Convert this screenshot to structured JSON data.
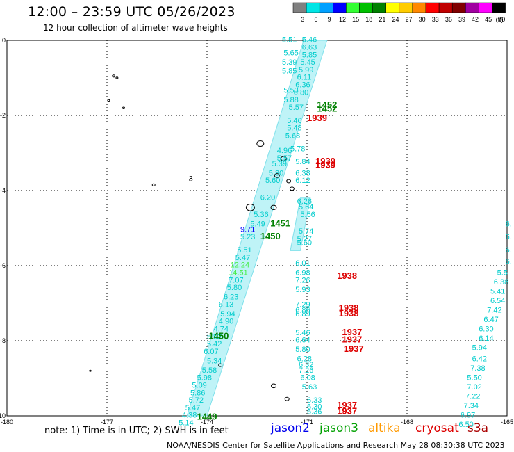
{
  "header": {
    "title": "12:00 – 23:59 UTC 05/26/2023",
    "subtitle": "12 hour collection of altimeter wave heights"
  },
  "legend": {
    "unit": "(ft)",
    "bins": [
      {
        "label": "3",
        "color": "#808080"
      },
      {
        "label": "6",
        "color": "#00e5e5"
      },
      {
        "label": "9",
        "color": "#00a0ff"
      },
      {
        "label": "12",
        "color": "#0000ff"
      },
      {
        "label": "15",
        "color": "#33ff33"
      },
      {
        "label": "18",
        "color": "#00c000"
      },
      {
        "label": "21",
        "color": "#008000"
      },
      {
        "label": "24",
        "color": "#ffff00"
      },
      {
        "label": "27",
        "color": "#ffcc00"
      },
      {
        "label": "30",
        "color": "#ff8800"
      },
      {
        "label": "33",
        "color": "#ff0000"
      },
      {
        "label": "36",
        "color": "#c00000"
      },
      {
        "label": "39",
        "color": "#800000"
      },
      {
        "label": "42",
        "color": "#a000a0"
      },
      {
        "label": "45",
        "color": "#ff00ff"
      },
      {
        "label": "70",
        "color": "#000000"
      }
    ]
  },
  "axes": {
    "lon_labels": [
      "-180",
      "-177",
      "-174",
      "-171",
      "-168",
      "-165"
    ],
    "lat_labels": [
      "0",
      "-2",
      "-4",
      "-6",
      "-8",
      "-10"
    ],
    "lon_range": [
      -180,
      -165
    ],
    "lat_range": [
      -10,
      0
    ],
    "grid": "dotted"
  },
  "swh_values": [
    {
      "text": "5.46",
      "lon": -171.15,
      "lat": -0.05,
      "color": "#00cccc"
    },
    {
      "text": "6.63",
      "lon": -171.15,
      "lat": -0.25,
      "color": "#00cccc"
    },
    {
      "text": "5.85",
      "lon": -171.15,
      "lat": -0.45,
      "color": "#00cccc"
    },
    {
      "text": "5.45",
      "lon": -171.2,
      "lat": -0.65,
      "color": "#00cccc"
    },
    {
      "text": "5.99",
      "lon": -171.25,
      "lat": -0.85,
      "color": "#00cccc"
    },
    {
      "text": "6.11",
      "lon": -171.3,
      "lat": -1.05,
      "color": "#00cccc"
    },
    {
      "text": "6.36",
      "lon": -171.35,
      "lat": -1.25,
      "color": "#00cccc"
    },
    {
      "text": "6.80",
      "lon": -171.4,
      "lat": -1.45,
      "color": "#00cccc"
    },
    {
      "text": "5.51",
      "lon": -171.75,
      "lat": -0.05,
      "color": "#00cccc"
    },
    {
      "text": "5.65",
      "lon": -171.7,
      "lat": -0.4,
      "color": "#00cccc"
    },
    {
      "text": "5.39",
      "lon": -171.75,
      "lat": -0.65,
      "color": "#00cccc"
    },
    {
      "text": "5.85",
      "lon": -171.75,
      "lat": -0.88,
      "color": "#00cccc"
    },
    {
      "text": "5.53",
      "lon": -171.7,
      "lat": -1.4,
      "color": "#00cccc"
    },
    {
      "text": "5.88",
      "lon": -171.7,
      "lat": -1.65,
      "color": "#00cccc"
    },
    {
      "text": "5.57",
      "lon": -171.55,
      "lat": -1.85,
      "color": "#00cccc"
    },
    {
      "text": "5.46",
      "lon": -171.6,
      "lat": -2.2,
      "color": "#00cccc"
    },
    {
      "text": "5.48",
      "lon": -171.6,
      "lat": -2.4,
      "color": "#00cccc"
    },
    {
      "text": "5.68",
      "lon": -171.65,
      "lat": -2.6,
      "color": "#00cccc"
    },
    {
      "text": "5.78",
      "lon": -171.5,
      "lat": -2.95,
      "color": "#00cccc"
    },
    {
      "text": "4.96",
      "lon": -171.9,
      "lat": -3.0,
      "color": "#00cccc"
    },
    {
      "text": "5.57",
      "lon": -171.9,
      "lat": -3.2,
      "color": "#00cccc"
    },
    {
      "text": "5.84",
      "lon": -171.35,
      "lat": -3.3,
      "color": "#00cccc"
    },
    {
      "text": "5.39",
      "lon": -172.05,
      "lat": -3.35,
      "color": "#00cccc"
    },
    {
      "text": "5.80",
      "lon": -172.15,
      "lat": -3.6,
      "color": "#00cccc"
    },
    {
      "text": "6.38",
      "lon": -171.35,
      "lat": -3.6,
      "color": "#00cccc"
    },
    {
      "text": "5.60",
      "lon": -172.25,
      "lat": -3.8,
      "color": "#00cccc"
    },
    {
      "text": "6.12",
      "lon": -171.35,
      "lat": -3.8,
      "color": "#00cccc"
    },
    {
      "text": "6.20",
      "lon": -172.4,
      "lat": -4.25,
      "color": "#00cccc"
    },
    {
      "text": "6.26",
      "lon": -171.3,
      "lat": -4.35,
      "color": "#00cccc"
    },
    {
      "text": "5.64",
      "lon": -171.25,
      "lat": -4.5,
      "color": "#00cccc"
    },
    {
      "text": "5.56",
      "lon": -171.2,
      "lat": -4.7,
      "color": "#00cccc"
    },
    {
      "text": "5.36",
      "lon": -172.6,
      "lat": -4.7,
      "color": "#00cccc"
    },
    {
      "text": "5.49",
      "lon": -172.7,
      "lat": -4.95,
      "color": "#00cccc"
    },
    {
      "text": "9.71",
      "lon": -173.0,
      "lat": -5.1,
      "color": "#0000ff"
    },
    {
      "text": "5.74",
      "lon": -171.25,
      "lat": -5.15,
      "color": "#00cccc"
    },
    {
      "text": "5.23",
      "lon": -173.0,
      "lat": -5.3,
      "color": "#00cccc"
    },
    {
      "text": "5.27",
      "lon": -171.3,
      "lat": -5.35,
      "color": "#00cccc"
    },
    {
      "text": "5.60",
      "lon": -171.3,
      "lat": -5.45,
      "color": "#00cccc"
    },
    {
      "text": "5.51",
      "lon": -173.1,
      "lat": -5.65,
      "color": "#00cccc"
    },
    {
      "text": "5.47",
      "lon": -173.15,
      "lat": -5.85,
      "color": "#00cccc"
    },
    {
      "text": "6.01",
      "lon": -171.35,
      "lat": -6.0,
      "color": "#00cccc"
    },
    {
      "text": "12.24",
      "lon": -173.3,
      "lat": -6.05,
      "color": "#44ee44"
    },
    {
      "text": "14.51",
      "lon": -173.35,
      "lat": -6.25,
      "color": "#44ee44"
    },
    {
      "text": "6.98",
      "lon": -171.35,
      "lat": -6.25,
      "color": "#00cccc"
    },
    {
      "text": "7.07",
      "lon": -173.35,
      "lat": -6.45,
      "color": "#00cccc"
    },
    {
      "text": "7.26",
      "lon": -171.35,
      "lat": -6.45,
      "color": "#00cccc"
    },
    {
      "text": "5.80",
      "lon": -173.4,
      "lat": -6.65,
      "color": "#00cccc"
    },
    {
      "text": "5.93",
      "lon": -171.35,
      "lat": -6.7,
      "color": "#00cccc"
    },
    {
      "text": "6.23",
      "lon": -173.5,
      "lat": -6.9,
      "color": "#00cccc"
    },
    {
      "text": "6.13",
      "lon": -173.65,
      "lat": -7.1,
      "color": "#00cccc"
    },
    {
      "text": "7.29",
      "lon": -171.35,
      "lat": -7.1,
      "color": "#00cccc"
    },
    {
      "text": "6.86",
      "lon": -171.35,
      "lat": -7.25,
      "color": "#00cccc"
    },
    {
      "text": "6.89",
      "lon": -171.35,
      "lat": -7.35,
      "color": "#00cccc"
    },
    {
      "text": "5.94",
      "lon": -173.6,
      "lat": -7.35,
      "color": "#00cccc"
    },
    {
      "text": "4.90",
      "lon": -173.65,
      "lat": -7.55,
      "color": "#00cccc"
    },
    {
      "text": "4.74",
      "lon": -173.8,
      "lat": -7.75,
      "color": "#00cccc"
    },
    {
      "text": "5.46",
      "lon": -171.35,
      "lat": -7.85,
      "color": "#00cccc"
    },
    {
      "text": "5.92",
      "lon": -174.0,
      "lat": -7.95,
      "color": "#00cccc"
    },
    {
      "text": "6.64",
      "lon": -171.35,
      "lat": -8.05,
      "color": "#00cccc"
    },
    {
      "text": "5.42",
      "lon": -174.0,
      "lat": -8.15,
      "color": "#00cccc"
    },
    {
      "text": "5.80",
      "lon": -171.35,
      "lat": -8.3,
      "color": "#00cccc"
    },
    {
      "text": "6.07",
      "lon": -174.1,
      "lat": -8.35,
      "color": "#00cccc"
    },
    {
      "text": "6.28",
      "lon": -171.3,
      "lat": -8.55,
      "color": "#00cccc"
    },
    {
      "text": "5.34",
      "lon": -174.0,
      "lat": -8.6,
      "color": "#00cccc"
    },
    {
      "text": "6.32",
      "lon": -171.25,
      "lat": -8.7,
      "color": "#00cccc"
    },
    {
      "text": "5.58",
      "lon": -174.15,
      "lat": -8.85,
      "color": "#00cccc"
    },
    {
      "text": "7.26",
      "lon": -171.25,
      "lat": -8.85,
      "color": "#00cccc"
    },
    {
      "text": "5.98",
      "lon": -174.3,
      "lat": -9.05,
      "color": "#00cccc"
    },
    {
      "text": "6.08",
      "lon": -171.2,
      "lat": -9.05,
      "color": "#00cccc"
    },
    {
      "text": "5.09",
      "lon": -174.45,
      "lat": -9.25,
      "color": "#00cccc"
    },
    {
      "text": "5.63",
      "lon": -171.15,
      "lat": -9.3,
      "color": "#00cccc"
    },
    {
      "text": "5.86",
      "lon": -174.5,
      "lat": -9.45,
      "color": "#00cccc"
    },
    {
      "text": "5.72",
      "lon": -174.55,
      "lat": -9.65,
      "color": "#00cccc"
    },
    {
      "text": "6.33",
      "lon": -171.0,
      "lat": -9.65,
      "color": "#00cccc"
    },
    {
      "text": "5.47",
      "lon": -174.65,
      "lat": -9.85,
      "color": "#00cccc"
    },
    {
      "text": "6.30",
      "lon": -171.0,
      "lat": -9.82,
      "color": "#00cccc"
    },
    {
      "text": "6.36",
      "lon": -171.0,
      "lat": -9.95,
      "color": "#00cccc"
    },
    {
      "text": "4.38",
      "lon": -174.75,
      "lat": -10.05,
      "color": "#00cccc"
    },
    {
      "text": "5.14",
      "lon": -174.85,
      "lat": -10.25,
      "color": "#00cccc"
    },
    {
      "text": "3",
      "lon": -174.55,
      "lat": -3.75,
      "color": "#000000"
    },
    {
      "text": "6.",
      "lon": -165.05,
      "lat": -4.95,
      "color": "#00cccc"
    },
    {
      "text": "6.",
      "lon": -165.05,
      "lat": -5.3,
      "color": "#00cccc"
    },
    {
      "text": "6.",
      "lon": -165.05,
      "lat": -5.65,
      "color": "#00cccc"
    },
    {
      "text": "6.",
      "lon": -165.05,
      "lat": -5.95,
      "color": "#00cccc"
    },
    {
      "text": "5.5",
      "lon": -165.3,
      "lat": -6.25,
      "color": "#00cccc"
    },
    {
      "text": "6.38",
      "lon": -165.4,
      "lat": -6.5,
      "color": "#00cccc"
    },
    {
      "text": "5.41",
      "lon": -165.5,
      "lat": -6.75,
      "color": "#00cccc"
    },
    {
      "text": "6.54",
      "lon": -165.5,
      "lat": -7.0,
      "color": "#00cccc"
    },
    {
      "text": "7.42",
      "lon": -165.6,
      "lat": -7.25,
      "color": "#00cccc"
    },
    {
      "text": "6.47",
      "lon": -165.7,
      "lat": -7.5,
      "color": "#00cccc"
    },
    {
      "text": "6.30",
      "lon": -165.85,
      "lat": -7.75,
      "color": "#00cccc"
    },
    {
      "text": "6.14",
      "lon": -165.85,
      "lat": -8.0,
      "color": "#00cccc"
    },
    {
      "text": "5.94",
      "lon": -166.05,
      "lat": -8.25,
      "color": "#00cccc"
    },
    {
      "text": "6.42",
      "lon": -166.05,
      "lat": -8.55,
      "color": "#00cccc"
    },
    {
      "text": "7.38",
      "lon": -166.1,
      "lat": -8.8,
      "color": "#00cccc"
    },
    {
      "text": "5.50",
      "lon": -166.2,
      "lat": -9.05,
      "color": "#00cccc"
    },
    {
      "text": "7.02",
      "lon": -166.2,
      "lat": -9.3,
      "color": "#00cccc"
    },
    {
      "text": "7.22",
      "lon": -166.25,
      "lat": -9.55,
      "color": "#00cccc"
    },
    {
      "text": "7.34",
      "lon": -166.3,
      "lat": -9.8,
      "color": "#00cccc"
    },
    {
      "text": "6.97",
      "lon": -166.4,
      "lat": -10.05,
      "color": "#00cccc"
    },
    {
      "text": "6.50",
      "lon": -166.45,
      "lat": -10.3,
      "color": "#00cccc"
    }
  ],
  "pass_times": [
    {
      "text": "1452",
      "lon": -170.7,
      "lat": -1.8,
      "color": "#008000"
    },
    {
      "text": "1452",
      "lon": -170.7,
      "lat": -1.9,
      "color": "#008000"
    },
    {
      "text": "1939",
      "lon": -171.0,
      "lat": -2.15,
      "color": "#dd0000"
    },
    {
      "text": "1939",
      "lon": -170.75,
      "lat": -3.3,
      "color": "#dd0000"
    },
    {
      "text": "1939",
      "lon": -170.75,
      "lat": -3.4,
      "color": "#dd0000"
    },
    {
      "text": "1451",
      "lon": -172.1,
      "lat": -4.95,
      "color": "#008000"
    },
    {
      "text": "1450",
      "lon": -172.4,
      "lat": -5.3,
      "color": "#008000"
    },
    {
      "text": "1938",
      "lon": -170.1,
      "lat": -6.35,
      "color": "#dd0000"
    },
    {
      "text": "1938",
      "lon": -170.05,
      "lat": -7.2,
      "color": "#dd0000"
    },
    {
      "text": "1938",
      "lon": -170.05,
      "lat": -7.35,
      "color": "#dd0000"
    },
    {
      "text": "1450",
      "lon": -173.95,
      "lat": -7.95,
      "color": "#008000"
    },
    {
      "text": "1937",
      "lon": -169.95,
      "lat": -7.85,
      "color": "#dd0000"
    },
    {
      "text": "1937",
      "lon": -169.95,
      "lat": -8.05,
      "color": "#dd0000"
    },
    {
      "text": "1937",
      "lon": -169.9,
      "lat": -8.3,
      "color": "#dd0000"
    },
    {
      "text": "1937",
      "lon": -170.1,
      "lat": -9.8,
      "color": "#dd0000"
    },
    {
      "text": "1937",
      "lon": -170.1,
      "lat": -9.95,
      "color": "#dd0000"
    },
    {
      "text": "1449",
      "lon": -174.3,
      "lat": -10.1,
      "color": "#008000"
    }
  ],
  "footer": {
    "note": "note: 1) Time is in UTC; 2) SWH is in feet",
    "satellites": [
      {
        "name": "jason2",
        "color": "#0000ee"
      },
      {
        "name": "jason3",
        "color": "#00a000"
      },
      {
        "name": "altika",
        "color": "#ff9900"
      },
      {
        "name": "cryosat",
        "color": "#dd0000"
      },
      {
        "name": "s3a",
        "color": "#aa0000"
      }
    ],
    "credit": "NOAA/NESDIS Center for Satellite Applications and Research    May 28 08:30:38 UTC 2023"
  }
}
